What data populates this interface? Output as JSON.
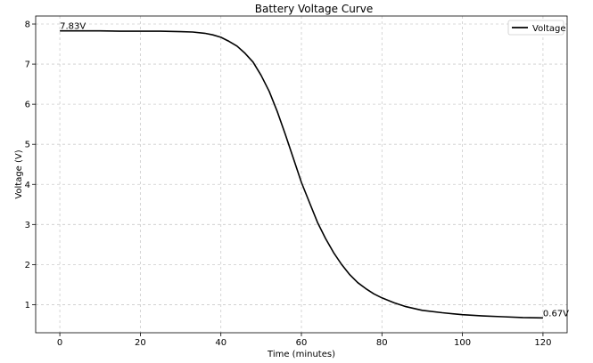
{
  "chart_data": {
    "type": "line",
    "title": "Battery Voltage Curve",
    "xlabel": "Time (minutes)",
    "ylabel": "Voltage (V)",
    "xlim": [
      -6,
      126
    ],
    "ylim": [
      0.3,
      8.2
    ],
    "xticks": [
      0,
      20,
      40,
      60,
      80,
      100,
      120
    ],
    "yticks": [
      1,
      2,
      3,
      4,
      5,
      6,
      7,
      8
    ],
    "grid": true,
    "legend": {
      "placement": "top-right"
    },
    "series": [
      {
        "name": "Voltage",
        "color": "#000000",
        "x": [
          0,
          5,
          10,
          15,
          20,
          25,
          30,
          33,
          36,
          38,
          40,
          42,
          44,
          46,
          48,
          50,
          52,
          54,
          56,
          58,
          60,
          62,
          64,
          66,
          68,
          70,
          72,
          74,
          76,
          78,
          80,
          83,
          86,
          90,
          95,
          100,
          105,
          110,
          115,
          120
        ],
        "y": [
          7.83,
          7.83,
          7.83,
          7.82,
          7.82,
          7.82,
          7.81,
          7.8,
          7.77,
          7.73,
          7.67,
          7.57,
          7.45,
          7.27,
          7.05,
          6.72,
          6.32,
          5.82,
          5.25,
          4.65,
          4.05,
          3.55,
          3.05,
          2.65,
          2.3,
          2.0,
          1.75,
          1.55,
          1.4,
          1.27,
          1.17,
          1.05,
          0.95,
          0.86,
          0.8,
          0.75,
          0.72,
          0.7,
          0.68,
          0.67
        ]
      }
    ],
    "annotations": [
      {
        "text": "7.83V",
        "x": 0,
        "y": 7.83
      },
      {
        "text": "0.67V",
        "x": 120,
        "y": 0.67
      }
    ]
  }
}
